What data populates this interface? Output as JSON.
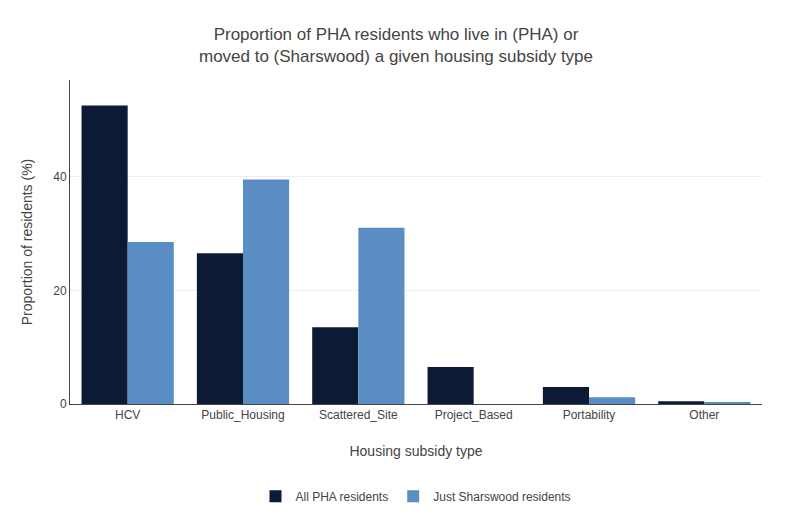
{
  "chart_data": {
    "type": "bar",
    "title": "Proportion of PHA residents who live in (PHA) or\nmoved to (Sharswood) a given housing subsidy type",
    "x_label": "Housing subsidy type",
    "y_label": "Proportion of residents (%)",
    "categories": [
      "HCV",
      "Public_Housing",
      "Scattered_Site",
      "Project_Based",
      "Portability",
      "Other"
    ],
    "series": [
      {
        "name": "All PHA residents",
        "color": "#0d1a35",
        "values": [
          52.5,
          26.5,
          13.5,
          6.5,
          3.0,
          0.5
        ]
      },
      {
        "name": "Just Sharswood residents",
        "color": "#5b8dc5",
        "values": [
          28.5,
          39.5,
          31.0,
          0.0,
          1.2,
          0.3
        ]
      }
    ],
    "ylim": [
      0,
      57
    ],
    "yticks": [
      0,
      20,
      40
    ],
    "grid": true,
    "legend": "bottom"
  }
}
